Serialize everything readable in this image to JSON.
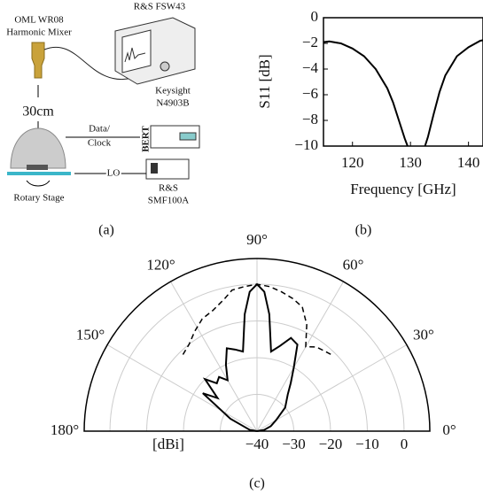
{
  "captions": {
    "a": "(a)",
    "b": "(b)",
    "c": "(c)"
  },
  "setup": {
    "mixer_line1": "OML WR08",
    "mixer_line2": "Harmonic Mixer",
    "analyzer": "R&S FSW43",
    "bert_line1": "Keysight",
    "bert_line2": "N4903B",
    "bert_tag": "BERT",
    "distance": "30cm",
    "data_line1": "Data/",
    "data_line2": "Clock",
    "lo": "LO",
    "generator_line1": "R&S",
    "generator_line2": "SMF100A",
    "stage": "Rotary Stage"
  },
  "chart_data": [
    {
      "type": "line",
      "xlabel": "Frequency [GHz]",
      "ylabel": "S11 [dB]",
      "x": [
        115,
        116,
        118,
        120,
        122,
        124,
        126,
        127,
        128,
        129,
        129.5,
        131,
        132.5,
        133,
        134,
        135,
        136,
        138,
        140,
        142,
        142.5
      ],
      "values": [
        -1.9,
        -1.85,
        -2.0,
        -2.4,
        -3.0,
        -4.0,
        -5.5,
        -6.6,
        -8.0,
        -9.4,
        -10,
        null,
        -10,
        -9.3,
        -7.5,
        -5.8,
        -4.5,
        -3.0,
        -2.3,
        -1.8,
        -1.75
      ],
      "color": "#000000",
      "xlim": [
        115,
        142.5
      ],
      "ylim": [
        -10,
        0
      ],
      "xticks": [
        120,
        130,
        140
      ],
      "yticks": [
        0,
        {
          "value": -2,
          "label": "−2"
        },
        {
          "value": -4,
          "label": "−4"
        },
        {
          "value": -6,
          "label": "−6"
        },
        {
          "value": -8,
          "label": "−8"
        },
        {
          "value": -10,
          "label": "−10"
        }
      ]
    },
    {
      "type": "polar",
      "rlabel": "[dBi]",
      "rlim": [
        -40,
        7
      ],
      "rticks": [
        {
          "value": -40,
          "label": "−40"
        },
        {
          "value": -30,
          "label": "−30"
        },
        {
          "value": -20,
          "label": "−20"
        },
        {
          "value": -10,
          "label": "−10"
        },
        0
      ],
      "thetalim": [
        0,
        180
      ],
      "thetaticks": [
        {
          "value": 0,
          "label": "0°"
        },
        {
          "value": 30,
          "label": "30°"
        },
        {
          "value": 60,
          "label": "60°"
        },
        {
          "value": 90,
          "label": "90°"
        },
        {
          "value": 120,
          "label": "120°"
        },
        {
          "value": 150,
          "label": "150°"
        },
        {
          "value": 180,
          "label": "180°"
        }
      ],
      "grid": true,
      "series": [
        {
          "color": "#000000",
          "line_style": "solid",
          "theta": [
            0,
            10,
            20,
            30,
            40,
            50,
            55,
            60,
            65,
            70,
            75,
            80,
            84,
            87,
            90,
            93,
            96,
            100,
            105,
            110,
            115,
            120,
            125,
            130,
            135,
            140,
            145,
            150,
            155,
            160,
            170,
            180
          ],
          "r": [
            -40,
            -38,
            -36,
            -34,
            -30,
            -27,
            -24,
            -20,
            -14,
            -13,
            -16,
            -18,
            -8,
            -2,
            0,
            -2,
            -8,
            -18,
            -17,
            -16,
            -20,
            -24,
            -22,
            -23,
            -20,
            -26,
            -22,
            -29,
            -32,
            -36,
            -38,
            -40
          ]
        },
        {
          "color": "#000000",
          "line_style": "dashed",
          "theta": [
            134,
            128,
            122,
            116,
            110,
            104,
            100,
            95,
            90,
            85,
            80,
            75,
            70,
            65,
            60,
            55,
            50,
            46
          ],
          "r": [
            -11,
            -10,
            -8,
            -6,
            -5,
            -3,
            -1,
            -0.5,
            0,
            -0.5,
            -1.5,
            -2.6,
            -4,
            -8,
            -13.5,
            -12,
            -11.5,
            -11
          ]
        }
      ]
    }
  ]
}
